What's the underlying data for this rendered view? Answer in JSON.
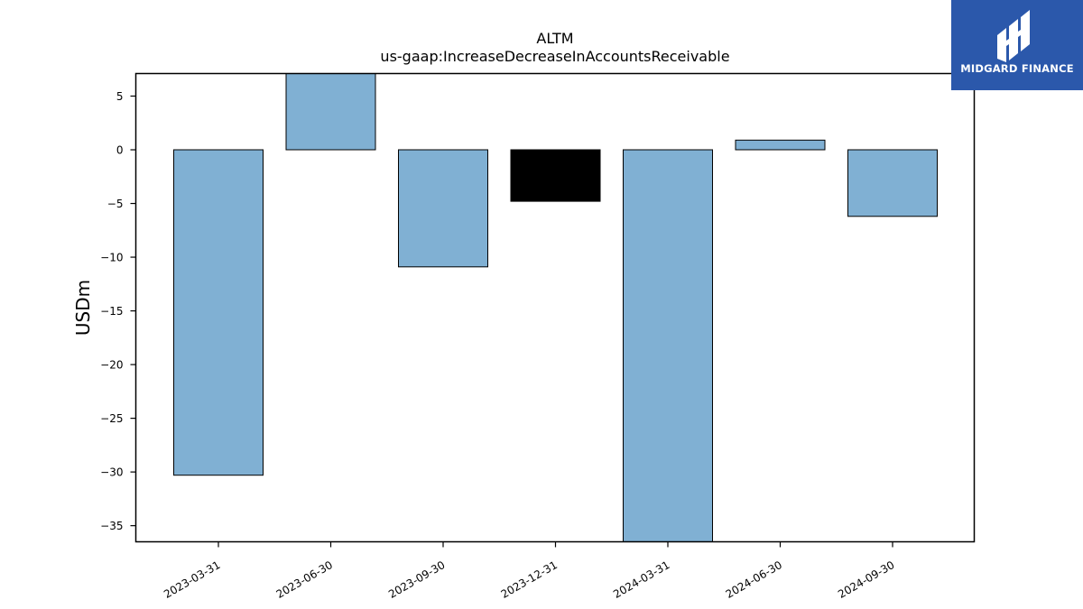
{
  "logo": {
    "name": "MIDGARD FINANCE",
    "background": "#2b58ab"
  },
  "chart_data": {
    "type": "bar",
    "title": "ALTM",
    "subtitle": "us-gaap:IncreaseDecreaseInAccountsReceivable",
    "xlabel": "",
    "ylabel": "USDm",
    "categories": [
      "2023-03-31",
      "2023-06-30",
      "2023-09-30",
      "2023-12-31",
      "2024-03-31",
      "2024-06-30",
      "2024-09-30"
    ],
    "values": [
      -30.3,
      7.5,
      -10.9,
      -4.8,
      -38.0,
      0.9,
      -6.2
    ],
    "bar_colors": [
      "#80b0d3",
      "#80b0d3",
      "#80b0d3",
      "#000000",
      "#80b0d3",
      "#80b0d3",
      "#80b0d3"
    ],
    "ylim": [
      -36.5,
      7.1
    ],
    "yticks": [
      5,
      0,
      -5,
      -10,
      -15,
      -20,
      -25,
      -30,
      -35
    ],
    "ytick_labels": [
      "5",
      "0",
      "−5",
      "−10",
      "−15",
      "−20",
      "−25",
      "−30",
      "−35"
    ],
    "grid": false,
    "legend": "none"
  }
}
